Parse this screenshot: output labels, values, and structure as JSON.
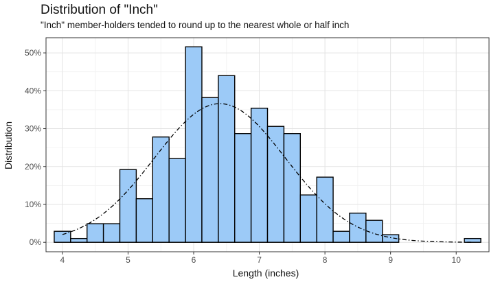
{
  "chart_data": {
    "type": "bar",
    "title": "Distribution of \"Inch\"",
    "subtitle": "\"Inch\" member-holders tended to round up to the nearest whole or half inch",
    "xlabel": "Length (inches)",
    "ylabel": "Distribution",
    "xlim": [
      3.75,
      10.5
    ],
    "ylim": [
      -0.025,
      0.54
    ],
    "x_ticks": [
      {
        "value": 4,
        "label": "4"
      },
      {
        "value": 5,
        "label": "5"
      },
      {
        "value": 6,
        "label": "6"
      },
      {
        "value": 7,
        "label": "7"
      },
      {
        "value": 8,
        "label": "8"
      },
      {
        "value": 9,
        "label": "9"
      },
      {
        "value": 10,
        "label": "10"
      }
    ],
    "y_ticks": [
      {
        "value": 0,
        "label": "0%"
      },
      {
        "value": 0.1,
        "label": "10%"
      },
      {
        "value": 0.2,
        "label": "20%"
      },
      {
        "value": 0.3,
        "label": "30%"
      },
      {
        "value": 0.4,
        "label": "40%"
      },
      {
        "value": 0.5,
        "label": "50%"
      }
    ],
    "bin_width": 0.25,
    "bars": [
      {
        "x0": 3.875,
        "value": 0.029
      },
      {
        "x0": 4.125,
        "value": 0.01
      },
      {
        "x0": 4.375,
        "value": 0.049
      },
      {
        "x0": 4.625,
        "value": 0.049
      },
      {
        "x0": 4.875,
        "value": 0.192
      },
      {
        "x0": 5.125,
        "value": 0.115
      },
      {
        "x0": 5.375,
        "value": 0.278
      },
      {
        "x0": 5.625,
        "value": 0.221
      },
      {
        "x0": 5.875,
        "value": 0.516
      },
      {
        "x0": 6.125,
        "value": 0.382
      },
      {
        "x0": 6.375,
        "value": 0.44
      },
      {
        "x0": 6.625,
        "value": 0.287
      },
      {
        "x0": 6.875,
        "value": 0.354
      },
      {
        "x0": 7.125,
        "value": 0.306
      },
      {
        "x0": 7.375,
        "value": 0.287
      },
      {
        "x0": 7.625,
        "value": 0.125
      },
      {
        "x0": 7.875,
        "value": 0.172
      },
      {
        "x0": 8.125,
        "value": 0.029
      },
      {
        "x0": 8.375,
        "value": 0.077
      },
      {
        "x0": 8.625,
        "value": 0.058
      },
      {
        "x0": 8.875,
        "value": 0.02
      },
      {
        "x0": 10.125,
        "value": 0.01
      }
    ],
    "density_curve": {
      "style": "dashed",
      "mean": 6.4,
      "sd": 1.0,
      "peak": 0.366
    },
    "colors": {
      "bar_fill": "#9ccaf7",
      "bar_stroke": "#000000",
      "panel_border": "#333333",
      "grid_major": "#e3e3e3",
      "grid_minor": "#f1f1f1"
    },
    "grid": true,
    "legend": "none"
  }
}
